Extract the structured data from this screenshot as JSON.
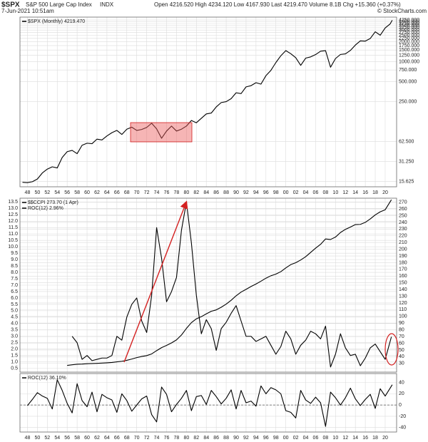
{
  "header": {
    "title": "$SPX",
    "name": "S&P 500 Large Cap Index",
    "exchange": "INDX",
    "timestamp": "7-Jun-2021 10:51am",
    "quote": "Open 4216.520 High 4234.120 Low 4167.930 Last 4219.470 Volume 8.1B Chg +15.360 (+0.37%)",
    "source": "© StockCharts.com"
  },
  "chart_data": [
    {
      "type": "line",
      "log_y": true,
      "grid": true,
      "y_axis_side": "right",
      "xlim": [
        1946.5,
        2022.3
      ],
      "xticks": [
        {
          "value": 1948,
          "label": "48"
        },
        {
          "value": 1950,
          "label": "50"
        },
        {
          "value": 1952,
          "label": "52"
        },
        {
          "value": 1954,
          "label": "54"
        },
        {
          "value": 1956,
          "label": "56"
        },
        {
          "value": 1958,
          "label": "58"
        },
        {
          "value": 1960,
          "label": "60"
        },
        {
          "value": 1962,
          "label": "62"
        },
        {
          "value": 1964,
          "label": "64"
        },
        {
          "value": 1966,
          "label": "66"
        },
        {
          "value": 1968,
          "label": "68"
        },
        {
          "value": 1970,
          "label": "70"
        },
        {
          "value": 1972,
          "label": "72"
        },
        {
          "value": 1974,
          "label": "74"
        },
        {
          "value": 1976,
          "label": "76"
        },
        {
          "value": 1978,
          "label": "78"
        },
        {
          "value": 1980,
          "label": "80"
        },
        {
          "value": 1982,
          "label": "82"
        },
        {
          "value": 1984,
          "label": "84"
        },
        {
          "value": 1986,
          "label": "86"
        },
        {
          "value": 1988,
          "label": "88"
        },
        {
          "value": 1990,
          "label": "90"
        },
        {
          "value": 1992,
          "label": "92"
        },
        {
          "value": 1994,
          "label": "94"
        },
        {
          "value": 1996,
          "label": "96"
        },
        {
          "value": 1998,
          "label": "98"
        },
        {
          "value": 2000,
          "label": "00"
        },
        {
          "value": 2002,
          "label": "02"
        },
        {
          "value": 2004,
          "label": "04"
        },
        {
          "value": 2006,
          "label": "06"
        },
        {
          "value": 2008,
          "label": "08"
        },
        {
          "value": 2010,
          "label": "10"
        },
        {
          "value": 2012,
          "label": "12"
        },
        {
          "value": 2014,
          "label": "14"
        },
        {
          "value": 2016,
          "label": "16"
        },
        {
          "value": 2018,
          "label": "18"
        },
        {
          "value": 2020,
          "label": "20"
        }
      ],
      "ylim": [
        13,
        4700
      ],
      "yticks": [
        15.625,
        {
          "value": 31.25,
          "label": "31.250"
        },
        {
          "value": 62.5,
          "label": "62.500"
        },
        {
          "value": 250,
          "label": "250.000"
        },
        {
          "value": 500,
          "label": "500.000"
        },
        {
          "value": 750,
          "label": "750.000"
        },
        {
          "value": 1000,
          "label": "1000.000"
        },
        {
          "value": 1250,
          "label": "1250.000"
        },
        {
          "value": 1500,
          "label": "1500.000"
        },
        {
          "value": 1750,
          "label": "1750.000"
        },
        {
          "value": 2000,
          "label": "2000.000"
        },
        {
          "value": 2250,
          "label": "2250.000"
        },
        {
          "value": 2500,
          "label": "2500.000"
        },
        {
          "value": 2750,
          "label": "2750.000"
        },
        {
          "value": 3000,
          "label": "3000.000"
        },
        {
          "value": 3250,
          "label": "3250.000"
        },
        {
          "value": 3500,
          "label": "3500.000"
        },
        {
          "value": 3750,
          "label": "3750.000"
        },
        {
          "value": 4000,
          "label": "4000.000"
        },
        {
          "value": 4250,
          "label": "4250.000"
        }
      ],
      "x": [
        1947,
        1948,
        1949,
        1950,
        1951,
        1952,
        1953,
        1954,
        1955,
        1956,
        1957,
        1958,
        1959,
        1960,
        1961,
        1962,
        1963,
        1964,
        1965,
        1966,
        1967,
        1968,
        1969,
        1970,
        1971,
        1972,
        1973,
        1974,
        1975,
        1976,
        1977,
        1978,
        1979,
        1980,
        1981,
        1982,
        1983,
        1984,
        1985,
        1986,
        1987,
        1988,
        1989,
        1990,
        1991,
        1992,
        1993,
        1994,
        1995,
        1996,
        1997,
        1998,
        1999,
        2000,
        2001,
        2002,
        2003,
        2004,
        2005,
        2006,
        2007,
        2008,
        2009,
        2010,
        2011,
        2012,
        2013,
        2014,
        2015,
        2016,
        2017,
        2018,
        2019,
        2020,
        2021,
        2021.42
      ],
      "series": [
        {
          "name": "$SPX (Monthly) 4219.470",
          "color": "#000000",
          "values": [
            15.2,
            15,
            15.5,
            17,
            21,
            24,
            26,
            25,
            36,
            44,
            46,
            41,
            55,
            59,
            58,
            68,
            66,
            76,
            85,
            92,
            80,
            96,
            103,
            92,
            95,
            102,
            118,
            97,
            70,
            90,
            107,
            90,
            96,
            107,
            130,
            120,
            140,
            163,
            168,
            208,
            242,
            250,
            277,
            340,
            330,
            417,
            435,
            482,
            459,
            615,
            740,
            970,
            1229,
            1469,
            1320,
            1148,
            880,
            1132,
            1181,
            1280,
            1438,
            1468,
            825,
            1115,
            1286,
            1312,
            1480,
            1782,
            2059,
            2044,
            2239,
            2823,
            2507,
            3231,
            3714,
            4219.47
          ]
        }
      ]
    },
    {
      "type": "line",
      "grid": true,
      "y_axis_side": "left",
      "xlim": [
        1946.5,
        2022.3
      ],
      "ylim": [
        0.2,
        13.8
      ],
      "yticks": [
        0.5,
        {
          "value": 1,
          "label": "1.0"
        },
        1.5,
        {
          "value": 2,
          "label": "2.0"
        },
        2.5,
        {
          "value": 3,
          "label": "3.0"
        },
        3.5,
        {
          "value": 4,
          "label": "4.0"
        },
        4.5,
        {
          "value": 5,
          "label": "5.0"
        },
        5.5,
        {
          "value": 6,
          "label": "6.0"
        },
        6.5,
        {
          "value": 7,
          "label": "7.0"
        },
        7.5,
        {
          "value": 8,
          "label": "8.0"
        },
        8.5,
        {
          "value": 9,
          "label": "9.0"
        },
        9.5,
        {
          "value": 10,
          "label": "10.0"
        },
        10.5,
        {
          "value": 11,
          "label": "11.0"
        },
        11.5,
        {
          "value": 12,
          "label": "12.0"
        },
        12.5,
        {
          "value": 13,
          "label": "13.0"
        },
        13.5
      ],
      "y2lim": [
        17,
        276
      ],
      "y2ticks": [
        30,
        40,
        50,
        60,
        70,
        80,
        90,
        100,
        110,
        120,
        130,
        140,
        150,
        160,
        170,
        180,
        190,
        200,
        210,
        220,
        230,
        240,
        250,
        260,
        270
      ],
      "x": [
        1956,
        1957,
        1958,
        1959,
        1960,
        1961,
        1962,
        1963,
        1964,
        1965,
        1966,
        1967,
        1968,
        1969,
        1970,
        1971,
        1972,
        1973,
        1974,
        1975,
        1976,
        1977,
        1978,
        1979,
        1980,
        1981,
        1982,
        1983,
        1984,
        1985,
        1986,
        1987,
        1988,
        1989,
        1990,
        1991,
        1992,
        1993,
        1994,
        1995,
        1996,
        1997,
        1998,
        1999,
        2000,
        2001,
        2002,
        2003,
        2004,
        2005,
        2006,
        2007,
        2008,
        2009,
        2010,
        2011,
        2012,
        2013,
        2014,
        2015,
        2016,
        2017,
        2018,
        2019,
        2020,
        2021.25
      ],
      "series": [
        {
          "name": "$$CCPI 273.70 (1 Apr)",
          "color": "#000000",
          "axis": "y2",
          "values": [
            27.0,
            27.9,
            28.7,
            29.0,
            29.5,
            29.8,
            30.1,
            30.5,
            30.9,
            31.4,
            32.3,
            33.2,
            34.6,
            36.5,
            38.6,
            40.3,
            41.6,
            44.1,
            49.0,
            53.5,
            56.8,
            60.5,
            65.0,
            72.3,
            82.1,
            90.7,
            96.4,
            99.6,
            103.8,
            107.6,
            109.7,
            113.6,
            118.3,
            124.0,
            130.7,
            136.2,
            140.3,
            144.5,
            148.2,
            152.4,
            156.9,
            160.5,
            163.0,
            166.6,
            172.2,
            177.1,
            179.9,
            184.0,
            188.9,
            195.3,
            201.6,
            207.3,
            215.3,
            214.5,
            218.1,
            224.9,
            229.6,
            233.0,
            236.7,
            237.0,
            240.0,
            245.1,
            251.1,
            255.7,
            258.8,
            273.7
          ]
        },
        {
          "name": "ROC(12) 2.96%",
          "color": "#000000",
          "values": [
            null,
            3.0,
            2.5,
            1.2,
            1.5,
            1.1,
            1.2,
            1.3,
            1.3,
            1.5,
            3.0,
            2.7,
            4.5,
            5.5,
            6.0,
            4.2,
            3.3,
            6.2,
            11.5,
            9.1,
            5.7,
            6.5,
            7.6,
            11.3,
            13.5,
            10.3,
            6.2,
            3.2,
            4.3,
            3.6,
            1.9,
            3.6,
            4.1,
            4.8,
            5.4,
            4.2,
            3.0,
            3.0,
            2.6,
            2.8,
            3.0,
            2.3,
            1.6,
            2.2,
            3.4,
            2.8,
            1.6,
            2.3,
            2.7,
            3.4,
            3.2,
            2.8,
            3.8,
            0.6,
            1.6,
            3.2,
            2.1,
            1.5,
            1.6,
            0.7,
            1.3,
            2.1,
            2.4,
            1.8,
            1.2,
            2.96
          ]
        }
      ]
    },
    {
      "type": "line",
      "grid": true,
      "y_axis_side": "right",
      "zero_line": true,
      "xlim": [
        1946.5,
        2022.3
      ],
      "xticks": [
        {
          "value": 1948,
          "label": "48"
        },
        {
          "value": 1950,
          "label": "50"
        },
        {
          "value": 1952,
          "label": "52"
        },
        {
          "value": 1954,
          "label": "54"
        },
        {
          "value": 1956,
          "label": "56"
        },
        {
          "value": 1958,
          "label": "58"
        },
        {
          "value": 1960,
          "label": "60"
        },
        {
          "value": 1962,
          "label": "62"
        },
        {
          "value": 1964,
          "label": "64"
        },
        {
          "value": 1966,
          "label": "66"
        },
        {
          "value": 1968,
          "label": "68"
        },
        {
          "value": 1970,
          "label": "70"
        },
        {
          "value": 1972,
          "label": "72"
        },
        {
          "value": 1974,
          "label": "74"
        },
        {
          "value": 1976,
          "label": "76"
        },
        {
          "value": 1978,
          "label": "78"
        },
        {
          "value": 1980,
          "label": "80"
        },
        {
          "value": 1982,
          "label": "82"
        },
        {
          "value": 1984,
          "label": "84"
        },
        {
          "value": 1986,
          "label": "86"
        },
        {
          "value": 1988,
          "label": "88"
        },
        {
          "value": 1990,
          "label": "90"
        },
        {
          "value": 1992,
          "label": "92"
        },
        {
          "value": 1994,
          "label": "94"
        },
        {
          "value": 1996,
          "label": "96"
        },
        {
          "value": 1998,
          "label": "98"
        },
        {
          "value": 2000,
          "label": "00"
        },
        {
          "value": 2002,
          "label": "02"
        },
        {
          "value": 2004,
          "label": "04"
        },
        {
          "value": 2006,
          "label": "06"
        },
        {
          "value": 2008,
          "label": "08"
        },
        {
          "value": 2010,
          "label": "10"
        },
        {
          "value": 2012,
          "label": "12"
        },
        {
          "value": 2014,
          "label": "14"
        },
        {
          "value": 2016,
          "label": "16"
        },
        {
          "value": 2018,
          "label": "18"
        },
        {
          "value": 2020,
          "label": "20"
        }
      ],
      "ylim": [
        -48,
        56
      ],
      "yticks": [
        -40,
        -20,
        0,
        20,
        40
      ],
      "x": [
        1948,
        1949,
        1950,
        1951,
        1952,
        1953,
        1954,
        1955,
        1956,
        1957,
        1958,
        1959,
        1960,
        1961,
        1962,
        1963,
        1964,
        1965,
        1966,
        1967,
        1968,
        1969,
        1970,
        1971,
        1972,
        1973,
        1974,
        1975,
        1976,
        1977,
        1978,
        1979,
        1980,
        1981,
        1982,
        1983,
        1984,
        1985,
        1986,
        1987,
        1988,
        1989,
        1990,
        1991,
        1992,
        1993,
        1994,
        1995,
        1996,
        1997,
        1998,
        1999,
        2000,
        2001,
        2002,
        2003,
        2004,
        2005,
        2006,
        2007,
        2008,
        2009,
        2010,
        2011,
        2012,
        2013,
        2014,
        2015,
        2016,
        2017,
        2018,
        2019,
        2020,
        2021.42
      ],
      "series": [
        {
          "name": "ROC(12) 36.10%",
          "color": "#000000",
          "values": [
            -1,
            10,
            22,
            16,
            12,
            -7,
            45,
            26,
            3,
            -14,
            38,
            8,
            -3,
            23,
            -12,
            19,
            13,
            9,
            -13,
            20,
            8,
            -11,
            0,
            11,
            16,
            -17,
            -30,
            32,
            19,
            -12,
            1,
            12,
            26,
            -10,
            15,
            17,
            1,
            26,
            15,
            2,
            12,
            27,
            -7,
            26,
            4,
            7,
            -2,
            34,
            20,
            31,
            27,
            20,
            -10,
            -13,
            -23,
            26,
            9,
            3,
            14,
            4,
            -38,
            23,
            13,
            0,
            13,
            30,
            11,
            -1,
            10,
            19,
            -6,
            29,
            16,
            36.1
          ]
        }
      ]
    }
  ]
}
